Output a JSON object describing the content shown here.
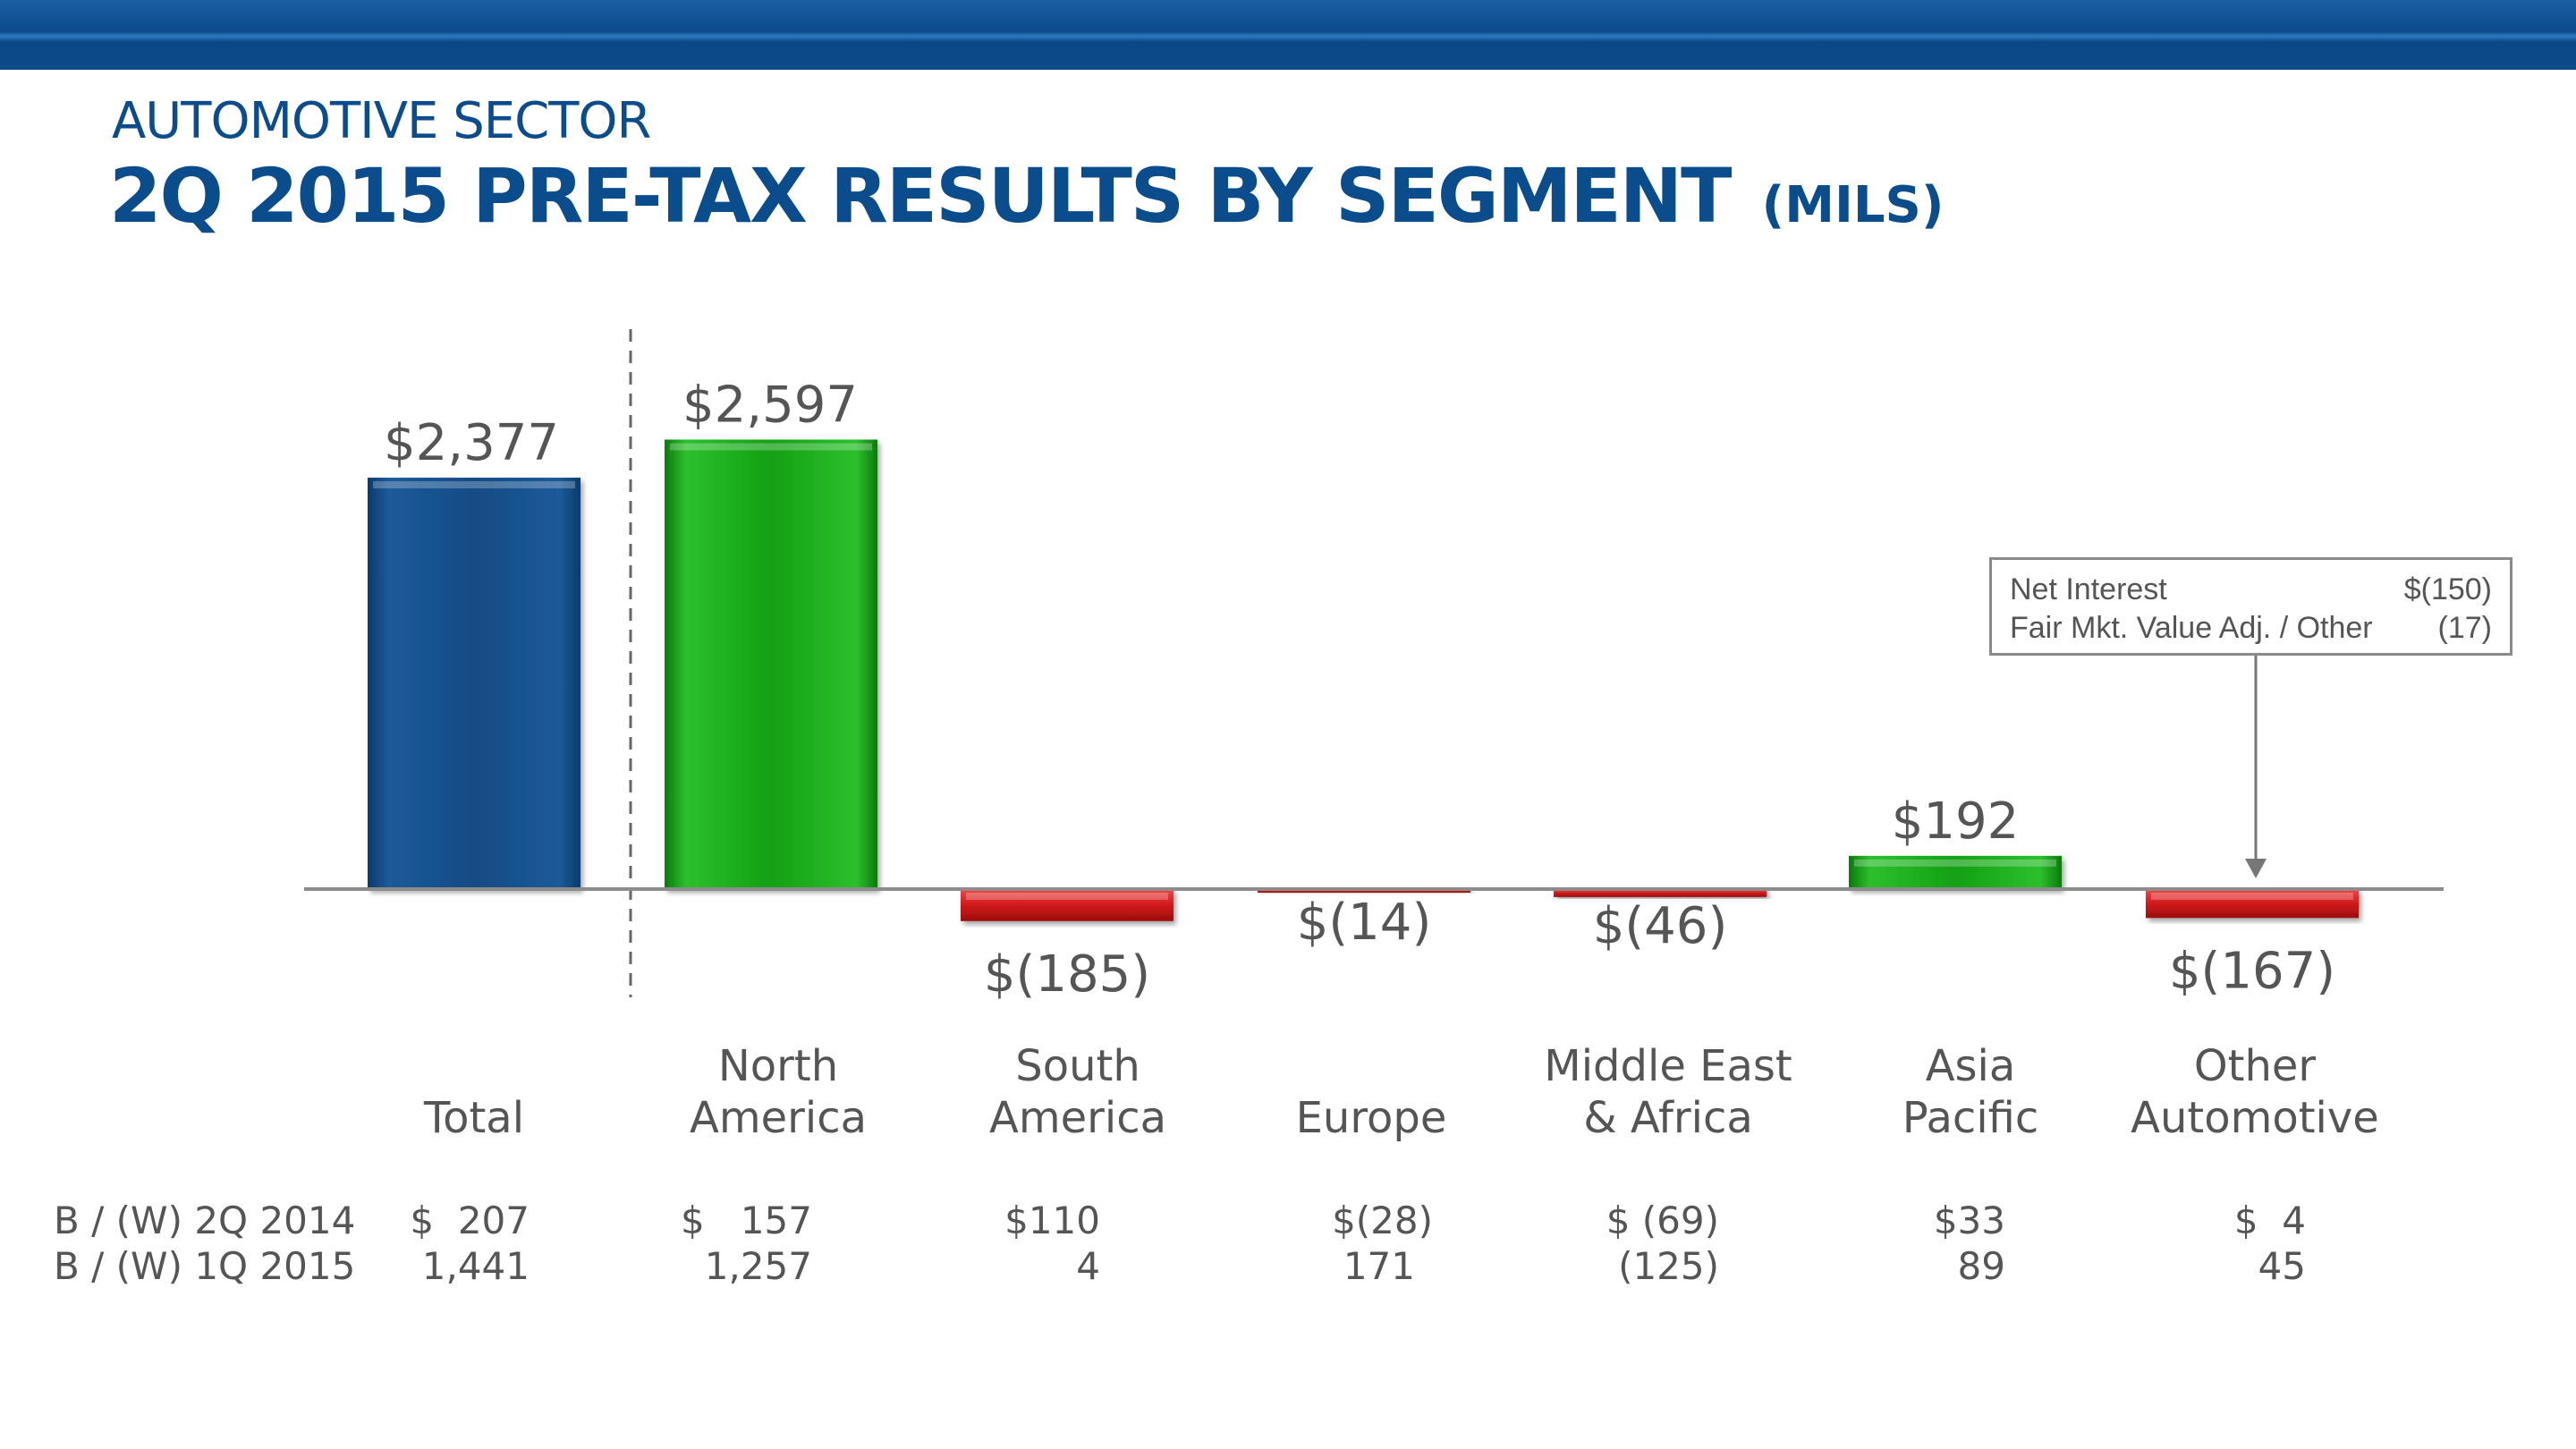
{
  "header": {
    "subtitle": "AUTOMOTIVE SECTOR",
    "title": "2Q 2015 PRE-TAX RESULTS BY SEGMENT",
    "title_unit": "(MILS)"
  },
  "colors": {
    "brand_blue": "#0b4c8c",
    "bar_blue": "#124b85",
    "bar_green": "#12a012",
    "bar_red": "#d01a1a"
  },
  "chart_data": {
    "type": "bar",
    "title": "2Q 2015 PRE-TAX RESULTS BY SEGMENT (MILS)",
    "categories": [
      {
        "line1": "",
        "line2": "Total"
      },
      {
        "line1": "North",
        "line2": "America"
      },
      {
        "line1": "South",
        "line2": "America"
      },
      {
        "line1": "",
        "line2": "Europe"
      },
      {
        "line1": "Middle East",
        "line2": "& Africa"
      },
      {
        "line1": "Asia",
        "line2": "Pacific"
      },
      {
        "line1": "Other",
        "line2": "Automotive"
      }
    ],
    "values": [
      2377,
      2597,
      -185,
      -14,
      -46,
      192,
      -167
    ],
    "value_labels": [
      "$2,377",
      "$2,597",
      "$(185)",
      "$(14)",
      "$(46)",
      "$192",
      "$(167)"
    ],
    "bar_colors": [
      "blue",
      "green",
      "red",
      "red",
      "red",
      "green",
      "red"
    ],
    "ylim": [
      -300,
      2900
    ],
    "xlabel": "",
    "ylabel": ""
  },
  "callout": {
    "rows": [
      {
        "label": "Net Interest",
        "value": "$(150)"
      },
      {
        "label": "Fair Mkt. Value Adj. / Other",
        "value": "(17)"
      }
    ]
  },
  "table": {
    "rows": [
      {
        "label": "B / (W) 2Q 2014",
        "values": [
          "$  207",
          "$   157",
          "$110",
          "$(28)",
          "$ (69)",
          "$33",
          "$  4"
        ]
      },
      {
        "label": "B / (W) 1Q 2015",
        "values": [
          "1,441",
          "1,257",
          "4",
          "171",
          "(125)",
          "89",
          "45"
        ]
      }
    ]
  }
}
